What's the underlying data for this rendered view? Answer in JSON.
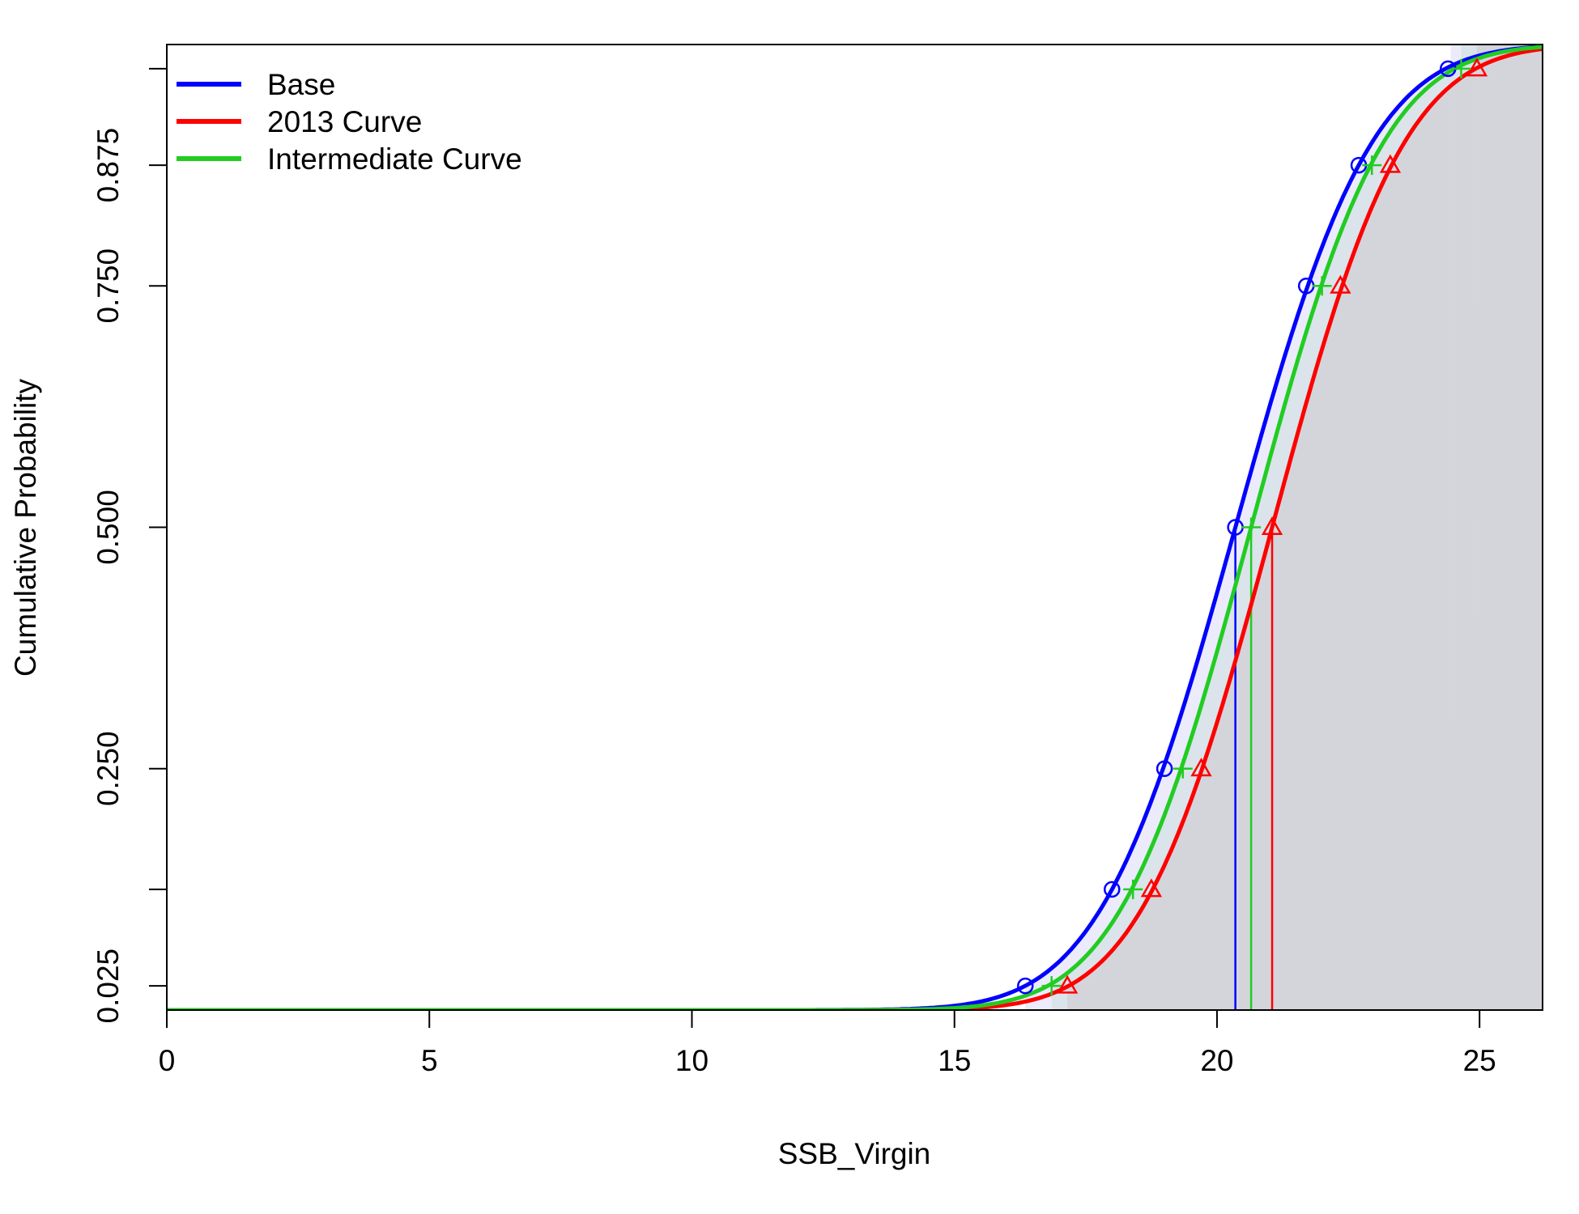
{
  "chart_data": {
    "type": "line",
    "title": "",
    "xlabel": "SSB_Virgin",
    "ylabel": "Cumulative Probability",
    "xlim": [
      0,
      26.2
    ],
    "ylim": [
      0,
      1
    ],
    "x_ticks": [
      0,
      5,
      10,
      15,
      20,
      25
    ],
    "x_tick_labels": [
      "0",
      "5",
      "10",
      "15",
      "20",
      "25"
    ],
    "y_ticks": [
      0.025,
      0.125,
      0.25,
      0.5,
      0.75,
      0.875,
      0.975
    ],
    "y_tick_labels": [
      "0.025",
      "",
      "0.250",
      "0.500",
      "0.750",
      "0.875",
      ""
    ],
    "legend_position": "top-left",
    "grid": false,
    "probability_levels": [
      0.025,
      0.125,
      0.25,
      0.5,
      0.75,
      0.875,
      0.975
    ],
    "series": [
      {
        "name": "Base",
        "color": "#0000ff",
        "fill": "rgba(120,120,230,0.15)",
        "marker": "circle",
        "median": 20.35,
        "upper_band": 24.45,
        "quantile_points": [
          16.35,
          18.0,
          19.0,
          20.35,
          21.7,
          22.7,
          24.4
        ]
      },
      {
        "name": "2013 Curve",
        "color": "#ff0000",
        "fill": "rgba(200,120,120,0.15)",
        "marker": "triangle",
        "median": 21.05,
        "upper_band": 24.95,
        "quantile_points": [
          17.15,
          18.75,
          19.7,
          21.05,
          22.35,
          23.3,
          24.95
        ]
      },
      {
        "name": "Intermediate Curve",
        "color": "#22cc22",
        "fill": "rgba(120,200,120,0.15)",
        "marker": "plus",
        "median": 20.65,
        "upper_band": 24.65,
        "quantile_points": [
          16.85,
          18.4,
          19.35,
          20.65,
          22.0,
          22.95,
          24.65
        ]
      }
    ]
  }
}
